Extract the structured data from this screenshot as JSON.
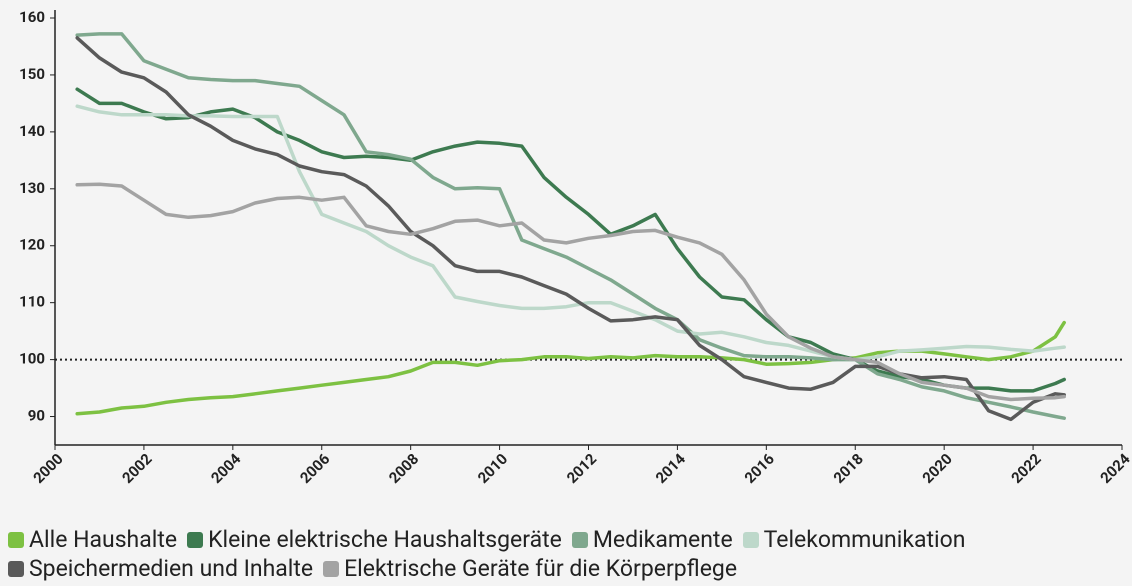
{
  "chart_data": {
    "type": "line",
    "x": [
      2000.5,
      2001,
      2001.5,
      2002,
      2002.5,
      2003,
      2003.5,
      2004,
      2004.5,
      2005,
      2005.5,
      2006,
      2006.5,
      2007,
      2007.5,
      2008,
      2008.5,
      2009,
      2009.5,
      2010,
      2010.5,
      2011,
      2011.5,
      2012,
      2012.5,
      2013,
      2013.5,
      2014,
      2014.5,
      2015,
      2015.5,
      2016,
      2016.5,
      2017,
      2017.5,
      2018,
      2018.5,
      2019,
      2019.5,
      2020,
      2020.5,
      2021,
      2021.5,
      2022,
      2022.5,
      2022.7
    ],
    "series": [
      {
        "name": "Alle Haushalte",
        "color": "#7dc142",
        "values": [
          90.5,
          90.8,
          91.5,
          91.8,
          92.5,
          93,
          93.3,
          93.5,
          94,
          94.5,
          95,
          95.5,
          96,
          96.5,
          97,
          98,
          99.5,
          99.5,
          99,
          99.8,
          100,
          100.5,
          100.5,
          100.2,
          100.5,
          100.3,
          100.7,
          100.5,
          100.5,
          100.3,
          100,
          99.2,
          99.3,
          99.5,
          100,
          100.3,
          101.2,
          101.5,
          101.5,
          101,
          100.5,
          100,
          100.5,
          101.5,
          104,
          106.5
        ]
      },
      {
        "name": "Kleine elektrische Haushaltsgeräte",
        "color": "#3d7a50",
        "values": [
          147.5,
          145,
          145,
          143.5,
          142.3,
          142.5,
          143.5,
          144,
          142.5,
          140,
          138.5,
          136.5,
          135.5,
          135.7,
          135.5,
          135,
          136.5,
          137.5,
          138.2,
          138,
          137.5,
          132,
          128.5,
          125.5,
          122,
          123.5,
          125.5,
          119.5,
          114.5,
          111,
          110.5,
          107,
          104,
          103,
          101,
          100,
          98,
          97,
          96.5,
          95.5,
          95,
          95,
          94.5,
          94.5,
          95.8,
          96.5
        ]
      },
      {
        "name": "Medikamente",
        "color": "#7fa88e",
        "values": [
          157,
          157.2,
          157.2,
          152.5,
          151,
          149.5,
          149.2,
          149,
          149,
          148.5,
          148,
          145.5,
          143,
          136.5,
          136,
          135.2,
          132,
          130,
          130.2,
          130,
          121,
          119.5,
          118,
          116,
          114,
          111.5,
          109,
          107,
          103.5,
          102,
          100.7,
          100.5,
          100.5,
          100.3,
          100,
          100,
          97.5,
          96.5,
          95.2,
          94.5,
          93.3,
          92.5,
          91.7,
          90.8,
          90,
          89.7
        ]
      },
      {
        "name": "Telekommunikation",
        "color": "#bdd8ca",
        "values": [
          144.5,
          143.5,
          143,
          143,
          143,
          142.8,
          142.8,
          142.7,
          142.7,
          142.7,
          133,
          125.5,
          124,
          122.5,
          120,
          118,
          116.5,
          111,
          110.2,
          109.5,
          109,
          109,
          109.3,
          110,
          110,
          108.5,
          107,
          105,
          104.5,
          104.8,
          104,
          103,
          102.5,
          101.5,
          100.5,
          100,
          100.5,
          101.5,
          101.7,
          102,
          102.3,
          102.2,
          101.8,
          101.5,
          102,
          102.2
        ]
      },
      {
        "name": "Speichermedien und Inhalte",
        "color": "#5a5a5a",
        "values": [
          156.5,
          153,
          150.5,
          149.5,
          147,
          143,
          141,
          138.5,
          137,
          136,
          134,
          133,
          132.5,
          130.5,
          127,
          122.5,
          120,
          116.5,
          115.5,
          115.5,
          114.5,
          113,
          111.5,
          109,
          106.8,
          107,
          107.5,
          107,
          102.5,
          100,
          97,
          96,
          95,
          94.8,
          96,
          98.8,
          98.8,
          97.5,
          96.8,
          97,
          96.5,
          91,
          89.5,
          92.5,
          94,
          93.8
        ]
      },
      {
        "name": "Elektrische Geräte für die Körperpflege",
        "color": "#a3a3a3",
        "values": [
          130.7,
          130.8,
          130.5,
          128,
          125.5,
          125,
          125.3,
          126,
          127.5,
          128.3,
          128.5,
          128,
          128.5,
          123.5,
          122.5,
          122,
          123,
          124.3,
          124.5,
          123.5,
          124,
          121,
          120.5,
          121.3,
          121.8,
          122.5,
          122.7,
          121.5,
          120.5,
          118.5,
          114,
          108,
          104,
          102,
          100.5,
          100,
          99.5,
          97.5,
          96,
          95.5,
          95,
          93.5,
          93,
          93.2,
          93.3,
          93.5
        ]
      }
    ],
    "xlim": [
      2000,
      2024
    ],
    "xticks": [
      2000,
      2002,
      2004,
      2006,
      2008,
      2010,
      2012,
      2014,
      2016,
      2018,
      2020,
      2022,
      2024
    ],
    "ylim": [
      85,
      160
    ],
    "yticks": [
      90,
      100,
      110,
      120,
      130,
      140,
      150,
      160
    ],
    "reference_line": 100,
    "legend": "bottom"
  }
}
